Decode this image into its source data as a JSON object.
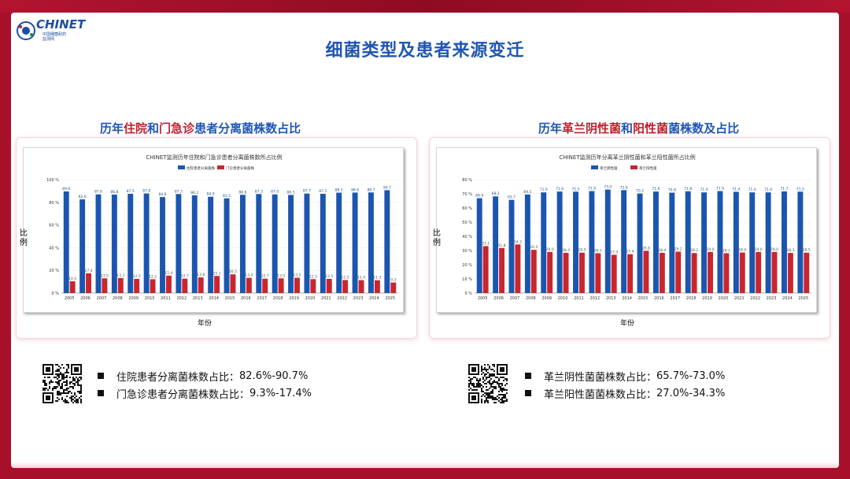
{
  "logo": {
    "title": "CHINET",
    "sub_line1": "中国细菌耐药",
    "sub_line2": "监测网"
  },
  "title": "细菌类型及患者来源变迁",
  "left": {
    "heading_parts": [
      "历年",
      "住院",
      "和",
      "门急诊",
      "患者分离菌株数占比"
    ],
    "bullets": [
      {
        "label": "住院患者分离菌株数占比：",
        "value": "82.6%-90.7%"
      },
      {
        "label": "门急诊患者分离菌株数占比：",
        "value": "9.3%-17.4%"
      }
    ]
  },
  "right": {
    "heading_parts": [
      "历年",
      "革兰阴性菌",
      "和",
      "阳性菌",
      "菌株数及占比"
    ],
    "bullets": [
      {
        "label": "革兰阴性菌菌株数占比：",
        "value": "65.7%-73.0%"
      },
      {
        "label": "革兰阳性菌菌株数占比：",
        "value": "27.0%-34.3%"
      }
    ]
  },
  "colors": {
    "blue": "#1a56b0",
    "red": "#c8262e",
    "title_blue": "#1f56b4",
    "title_red": "#c0202e"
  },
  "chart_data": [
    {
      "type": "bar",
      "title": "CHINET监测历年住院和门急诊患者分离菌株数所占比例",
      "xlabel": "年份",
      "ylabel": "比例",
      "ylim": [
        0,
        100
      ],
      "yticks": [
        0,
        20,
        40,
        60,
        80,
        100
      ],
      "ytick_suffix": " %",
      "categories": [
        "2005",
        "2006",
        "2007",
        "2008",
        "2009",
        "2010",
        "2011",
        "2012",
        "2013",
        "2014",
        "2015",
        "2016",
        "2017",
        "2018",
        "2019",
        "2020",
        "2021",
        "2022",
        "2023",
        "2024",
        "2025"
      ],
      "series": [
        {
          "name": "住院患者分离菌株",
          "color": "#1a56b0",
          "values": [
            89.6,
            82.6,
            87.0,
            86.8,
            87.5,
            87.8,
            84.6,
            87.3,
            86.2,
            84.9,
            83.5,
            86.6,
            87.3,
            87.0,
            86.5,
            87.7,
            87.5,
            88.5,
            88.6,
            88.7,
            90.7
          ]
        },
        {
          "name": "门诊患者分离菌株",
          "color": "#c8262e",
          "values": [
            10.4,
            17.4,
            13.0,
            13.2,
            12.5,
            12.2,
            15.4,
            12.7,
            13.8,
            15.1,
            16.5,
            13.4,
            12.7,
            13.0,
            13.5,
            12.3,
            12.5,
            11.5,
            11.4,
            11.3,
            9.3
          ]
        }
      ]
    },
    {
      "type": "bar",
      "title": "CHINET监测历年分离革兰阴性菌和革兰阳性菌所占比例",
      "xlabel": "年份",
      "ylabel": "比例",
      "ylim": [
        0,
        80
      ],
      "yticks": [
        0,
        10,
        20,
        30,
        40,
        50,
        60,
        70,
        80
      ],
      "ytick_suffix": " %",
      "categories": [
        "2005",
        "2006",
        "2007",
        "2008",
        "2009",
        "2010",
        "2011",
        "2012",
        "2013",
        "2014",
        "2015",
        "2016",
        "2017",
        "2018",
        "2019",
        "2020",
        "2021",
        "2022",
        "2023",
        "2024",
        "2025"
      ],
      "series": [
        {
          "name": "革兰阴性菌",
          "color": "#1a56b0",
          "values": [
            66.9,
            68.2,
            65.7,
            69.5,
            71.0,
            71.6,
            71.5,
            71.9,
            73.0,
            72.6,
            70.2,
            71.6,
            70.8,
            71.8,
            71.0,
            71.9,
            71.4,
            71.0,
            71.0,
            71.7,
            71.5
          ]
        },
        {
          "name": "革兰阳性菌",
          "color": "#c8262e",
          "values": [
            33.1,
            31.8,
            34.3,
            30.5,
            29.0,
            28.4,
            28.5,
            28.1,
            27.0,
            27.4,
            29.8,
            28.4,
            29.2,
            28.2,
            29.0,
            28.1,
            28.6,
            29.0,
            29.0,
            28.3,
            28.5
          ]
        }
      ]
    }
  ]
}
